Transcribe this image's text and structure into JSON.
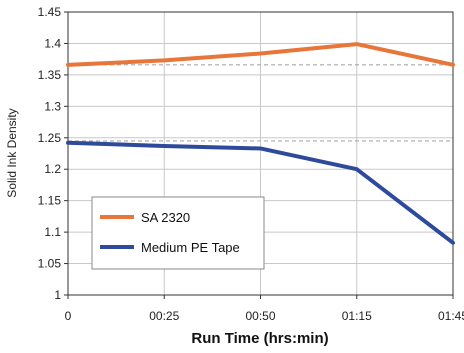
{
  "chart_data": {
    "type": "line",
    "title": "",
    "xlabel": "Run Time (hrs:min)",
    "ylabel": "Solid Ink Density",
    "categories": [
      "0",
      "00:25",
      "00:50",
      "01:15",
      "01:45"
    ],
    "ylim": [
      1,
      1.45
    ],
    "yticks": [
      "1",
      "1.05",
      "1.1",
      "1.15",
      "1.2",
      "1.25",
      "1.3",
      "1.35",
      "1.4",
      "1.45"
    ],
    "grid": true,
    "legend_position": "lower-left",
    "series": [
      {
        "name": "SA 2320",
        "color": "#e8763a",
        "values": [
          1.366,
          1.373,
          1.384,
          1.399,
          1.366
        ]
      },
      {
        "name": "Medium PE Tape",
        "color": "#2e4a9a",
        "values": [
          1.242,
          1.237,
          1.233,
          1.2,
          1.083
        ]
      }
    ],
    "reference_lines": [
      {
        "value": 1.366,
        "style": "dashed",
        "color": "#aaaaaa"
      },
      {
        "value": 1.245,
        "style": "dashed",
        "color": "#aaaaaa"
      }
    ]
  }
}
